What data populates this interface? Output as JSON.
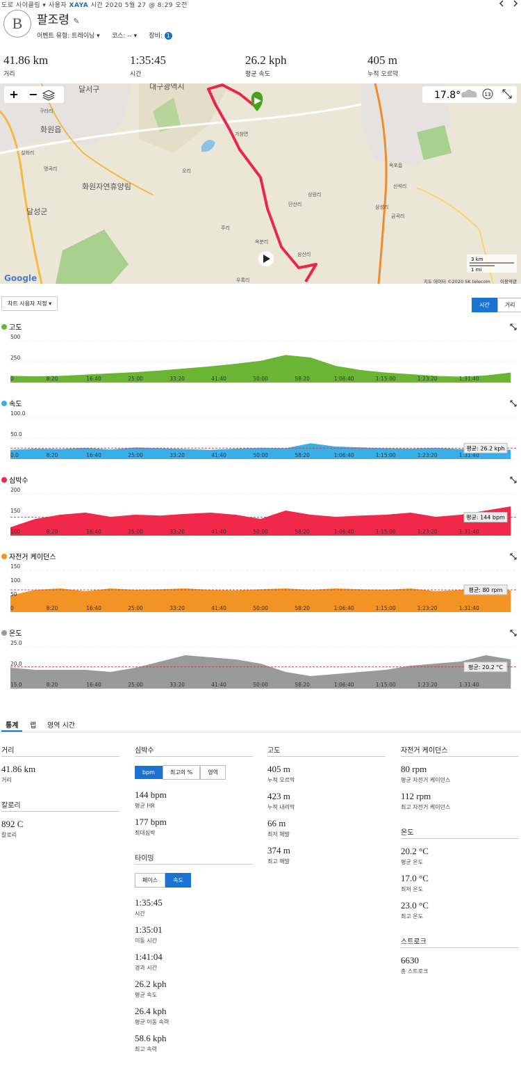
{
  "header": {
    "activity_type": "도로 사이클링",
    "user_label": "사용자",
    "user": "XAYA",
    "time": "시간 2020 5월 27 @ 8:29 오전",
    "avatar": "B",
    "title": "팔조령",
    "event_type": "이벤트 유형: 트레이닝",
    "course": "코스: --",
    "gear": "장비:",
    "gear_count": "1"
  },
  "summary": [
    {
      "value": "41.86 km",
      "label": "거리"
    },
    {
      "value": "1:35:45",
      "label": "시간"
    },
    {
      "value": "26.2 kph",
      "label": "평균 속도"
    },
    {
      "value": "405 m",
      "label": "누적 오르막"
    }
  ],
  "map": {
    "labels": [
      "대구광역시",
      "달서구",
      "화원읍",
      "화원자연휴양림",
      "달성군",
      "구라리",
      "설화리",
      "명곡리",
      "오리",
      "주리",
      "가창면",
      "단산리",
      "상원리",
      "옥분리",
      "삼산리",
      "우록리",
      "금곡리",
      "신석리",
      "삼성리",
      "옥포읍"
    ],
    "weather": "17.8°",
    "time_badge": "13",
    "scale_km": "3 km",
    "scale_mi": "1 mi",
    "logo": "Google",
    "attribution": "지도 데이터 ©2020 SK telecom",
    "terms": "이용약관"
  },
  "controls": {
    "customize": "차트 사용자 지정 ▾",
    "time": "시간",
    "distance": "거리"
  },
  "time_axis": {
    "x": [
      0,
      5,
      10,
      15,
      20,
      25,
      30,
      35,
      40,
      45,
      50,
      55,
      60,
      65,
      70,
      75,
      80,
      85,
      90,
      95,
      100
    ],
    "xlim": [
      0,
      101.07
    ],
    "xticks": [
      {
        "value": 8.333,
        "label": "8:20"
      },
      {
        "value": 16.667,
        "label": "16:40"
      },
      {
        "value": 25,
        "label": "25:00"
      },
      {
        "value": 33.333,
        "label": "33:20"
      },
      {
        "value": 41.667,
        "label": "41:40"
      },
      {
        "value": 50,
        "label": "50:00"
      },
      {
        "value": 58.333,
        "label": "58:20"
      },
      {
        "value": 66.667,
        "label": "1:06:40"
      },
      {
        "value": 75,
        "label": "1:15:00"
      },
      {
        "value": 83.333,
        "label": "1:23:20"
      },
      {
        "value": 91.667,
        "label": "1:31:40"
      }
    ]
  },
  "charts": [
    {
      "type": "area",
      "title": "고도",
      "color": "#6ab534",
      "ylim": [
        0,
        500
      ],
      "yticks": [
        0,
        250,
        500
      ],
      "values": [
        80,
        75,
        80,
        95,
        110,
        125,
        145,
        170,
        195,
        225,
        260,
        330,
        300,
        200,
        150,
        120,
        100,
        80,
        70,
        85,
        120
      ]
    },
    {
      "type": "area",
      "title": "속도",
      "color": "#3aaee6",
      "ylim": [
        0,
        100
      ],
      "yticks": [
        {
          "value": 0,
          "label": "0.0"
        },
        {
          "value": 50,
          "label": "50.0"
        },
        {
          "value": 100,
          "label": "100.0"
        }
      ],
      "values": [
        22,
        25,
        24,
        27,
        23,
        28,
        26,
        24,
        22,
        25,
        27,
        26,
        38,
        30,
        28,
        26,
        25,
        27,
        24,
        26,
        22
      ],
      "average": 26.2,
      "average_label": "평균: 26.2 kph"
    },
    {
      "type": "area",
      "title": "심박수",
      "color": "#f0284a",
      "ylim": [
        100,
        200
      ],
      "yticks": [
        100,
        150,
        200
      ],
      "values": [
        120,
        140,
        150,
        155,
        145,
        150,
        148,
        152,
        155,
        150,
        140,
        160,
        150,
        145,
        148,
        150,
        155,
        145,
        150,
        160,
        170
      ],
      "average": 144,
      "average_label": "평균: 144 bpm"
    },
    {
      "type": "area",
      "title": "자전거 케이던스",
      "color": "#f39323",
      "ylim": [
        0,
        150
      ],
      "yticks": [
        0,
        50,
        100,
        150
      ],
      "values": [
        60,
        80,
        85,
        75,
        85,
        80,
        82,
        85,
        80,
        78,
        82,
        85,
        80,
        85,
        82,
        80,
        85,
        75,
        80,
        82,
        78
      ],
      "average": 80,
      "average_label": "평균: 80 rpm"
    },
    {
      "type": "area",
      "title": "온도",
      "color": "#9a9a9a",
      "ylim": [
        15,
        25
      ],
      "yticks": [
        {
          "value": 15,
          "label": "15.0"
        },
        {
          "value": 20,
          "label": "20.0"
        },
        {
          "value": 25,
          "label": "25.0"
        }
      ],
      "values": [
        20,
        19.5,
        19.5,
        19.5,
        19,
        20,
        21.5,
        23,
        22.5,
        22,
        21,
        19,
        18,
        18.5,
        19,
        19.5,
        20.5,
        21,
        21.5,
        23,
        22
      ],
      "average": 20.2,
      "average_label": "평균: 20.2 °C"
    }
  ],
  "stats": {
    "tabs": [
      "통계",
      "랩",
      "영역 시간"
    ],
    "columns": [
      [
        {
          "title": "거리",
          "items": [
            {
              "value": "41.86 km",
              "label": "거리"
            }
          ]
        },
        {
          "title": "칼로리",
          "items": [
            {
              "value": "892 C",
              "label": "칼로리"
            }
          ]
        }
      ],
      [
        {
          "title": "심박수",
          "buttons": [
            "bpm",
            "최고의 %",
            "영역"
          ],
          "items": [
            {
              "value": "144 bpm",
              "label": "평균 HR"
            },
            {
              "value": "177 bpm",
              "label": "최대심박"
            }
          ]
        },
        {
          "title": "타이밍",
          "buttons": [
            "페이스",
            "속도"
          ],
          "items": [
            {
              "value": "1:35:45",
              "label": "시간"
            },
            {
              "value": "1:35:01",
              "label": "이동 시간"
            },
            {
              "value": "1:41:04",
              "label": "경과 시간"
            },
            {
              "value": "26.2 kph",
              "label": "평균 속도"
            },
            {
              "value": "26.4 kph",
              "label": "평균 이동 속력"
            },
            {
              "value": "58.6 kph",
              "label": "최고 속력"
            }
          ]
        }
      ],
      [
        {
          "title": "고도",
          "items": [
            {
              "value": "405 m",
              "label": "누적 오르막"
            },
            {
              "value": "423 m",
              "label": "누적 내리막"
            },
            {
              "value": "66 m",
              "label": "최저 해발"
            },
            {
              "value": "374 m",
              "label": "최고 해발"
            }
          ]
        }
      ],
      [
        {
          "title": "자전거 케이던스",
          "items": [
            {
              "value": "80 rpm",
              "label": "평균 자전거 케이던스"
            },
            {
              "value": "112 rpm",
              "label": "최고 자전거 케이던스"
            }
          ]
        },
        {
          "title": "온도",
          "items": [
            {
              "value": "20.2 °C",
              "label": "평균 온도"
            },
            {
              "value": "17.0 °C",
              "label": "최저 온도"
            },
            {
              "value": "23.0 °C",
              "label": "최고 온도"
            }
          ]
        },
        {
          "title": "스트로크",
          "items": [
            {
              "value": "6630",
              "label": "총 스트로크"
            }
          ]
        }
      ]
    ]
  }
}
